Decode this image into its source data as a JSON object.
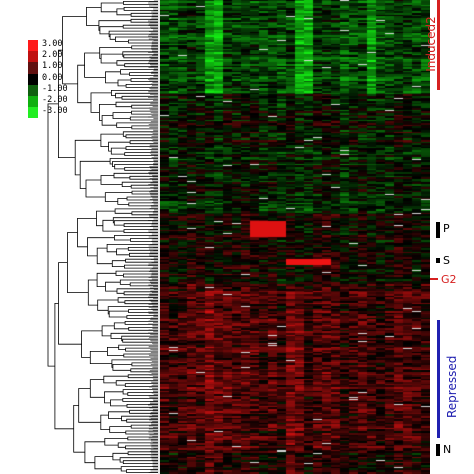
{
  "legend": {
    "entries": [
      {
        "label": "3.00",
        "color": "#ff1a1a"
      },
      {
        "label": "2.00",
        "color": "#c01010"
      },
      {
        "label": "1.00",
        "color": "#601010"
      },
      {
        "label": "0.00",
        "color": "#000000"
      },
      {
        "label": "-1.00",
        "color": "#106010"
      },
      {
        "label": "-2.00",
        "color": "#10b010"
      },
      {
        "label": "-3.00",
        "color": "#22ee22"
      }
    ]
  },
  "clusters": {
    "induced2": {
      "label": "Induced2",
      "color": "#d62020"
    },
    "p": {
      "label": "P",
      "color": "#000000"
    },
    "s": {
      "label": "S",
      "color": "#000000"
    },
    "g2": {
      "label": "G2",
      "color": "#d62020"
    },
    "repressed": {
      "label": "Repressed",
      "color": "#2020b0"
    },
    "n": {
      "label": "N",
      "color": "#000000"
    }
  },
  "heatmap": {
    "columns": 30,
    "rows": 280
  }
}
